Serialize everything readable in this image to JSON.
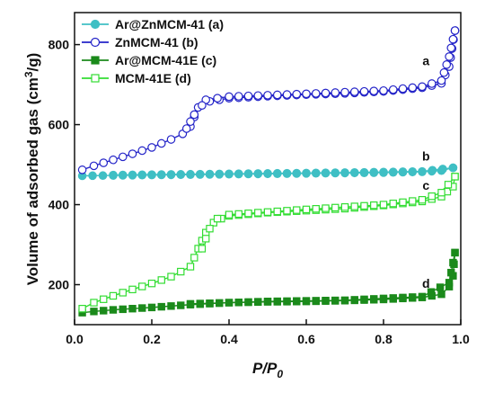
{
  "chart_data": {
    "type": "line",
    "xlabel": "P/P",
    "xlabel_sub": "0",
    "ylabel": "Volume of adsorbed gas (cm",
    "ylabel_sup": "3",
    "ylabel_tail": "/g)",
    "xlim": [
      0.0,
      1.0
    ],
    "ylim": [
      100,
      880
    ],
    "xticks": [
      0.0,
      0.2,
      0.4,
      0.6,
      0.8,
      1.0
    ],
    "xtick_labels": [
      "0.0",
      "0.2",
      "0.4",
      "0.6",
      "0.8",
      "1.0"
    ],
    "yticks": [
      200,
      400,
      600,
      800
    ],
    "ytick_labels": [
      "200",
      "400",
      "600",
      "800"
    ],
    "legend_position": "top-left",
    "series": [
      {
        "name": "Ar@ZnMCM-41 (a)",
        "color": "#3fbfc4",
        "marker": "circle-filled",
        "adsorption": {
          "x": [
            0.02,
            0.1,
            0.2,
            0.3,
            0.4,
            0.5,
            0.6,
            0.7,
            0.8,
            0.9,
            0.95,
            0.98
          ],
          "y": [
            472,
            473,
            474,
            475,
            476,
            477,
            478,
            479,
            480,
            482,
            485,
            492
          ]
        },
        "desorption": {
          "x": [
            0.98,
            0.9,
            0.7,
            0.5,
            0.3,
            0.1
          ],
          "y": [
            492,
            483,
            480,
            478,
            476,
            474
          ]
        }
      },
      {
        "name": "ZnMCM-41 (b)",
        "color": "#2424c8",
        "marker": "circle-open",
        "adsorption": {
          "x": [
            0.02,
            0.05,
            0.1,
            0.15,
            0.2,
            0.25,
            0.28,
            0.3,
            0.32,
            0.35,
            0.4,
            0.5,
            0.6,
            0.7,
            0.8,
            0.9,
            0.95,
            0.97,
            0.985
          ],
          "y": [
            487,
            497,
            512,
            527,
            543,
            563,
            577,
            595,
            643,
            658,
            666,
            671,
            675,
            678,
            683,
            692,
            703,
            745,
            835
          ]
        },
        "desorption": {
          "x": [
            0.985,
            0.97,
            0.95,
            0.9,
            0.8,
            0.6,
            0.4,
            0.34,
            0.33,
            0.31,
            0.29
          ],
          "y": [
            835,
            770,
            710,
            695,
            685,
            677,
            670,
            662,
            648,
            625,
            590
          ]
        }
      },
      {
        "name": "Ar@MCM-41E (c)",
        "color": "#1b8a1b",
        "marker": "square-filled",
        "adsorption": {
          "x": [
            0.02,
            0.05,
            0.1,
            0.2,
            0.3,
            0.4,
            0.5,
            0.6,
            0.7,
            0.8,
            0.9,
            0.95,
            0.97,
            0.98,
            0.985
          ],
          "y": [
            130,
            133,
            137,
            143,
            150,
            155,
            157,
            158,
            160,
            163,
            168,
            176,
            195,
            222,
            280
          ]
        },
        "desorption": {
          "x": [
            0.985,
            0.97,
            0.9,
            0.7,
            0.5,
            0.3
          ],
          "y": [
            280,
            205,
            170,
            161,
            158,
            152
          ]
        }
      },
      {
        "name": "MCM-41E (d)",
        "color": "#33dd33",
        "marker": "square-open",
        "adsorption": {
          "x": [
            0.02,
            0.05,
            0.1,
            0.15,
            0.2,
            0.25,
            0.3,
            0.32,
            0.34,
            0.36,
            0.38,
            0.4,
            0.5,
            0.6,
            0.7,
            0.8,
            0.9,
            0.95,
            0.98,
            0.985
          ],
          "y": [
            140,
            155,
            172,
            188,
            203,
            220,
            245,
            290,
            330,
            355,
            365,
            372,
            380,
            385,
            390,
            398,
            408,
            420,
            445,
            470
          ]
        },
        "desorption": {
          "x": [
            0.985,
            0.95,
            0.9,
            0.8,
            0.6,
            0.4,
            0.37,
            0.35,
            0.33
          ],
          "y": [
            470,
            430,
            412,
            400,
            388,
            375,
            365,
            340,
            290
          ]
        }
      }
    ],
    "annotations": [
      {
        "text": "a",
        "x": 0.91,
        "y": 748
      },
      {
        "text": "b",
        "x": 0.91,
        "y": 510
      },
      {
        "text": "c",
        "x": 0.91,
        "y": 437
      },
      {
        "text": "d",
        "x": 0.91,
        "y": 192
      }
    ]
  }
}
